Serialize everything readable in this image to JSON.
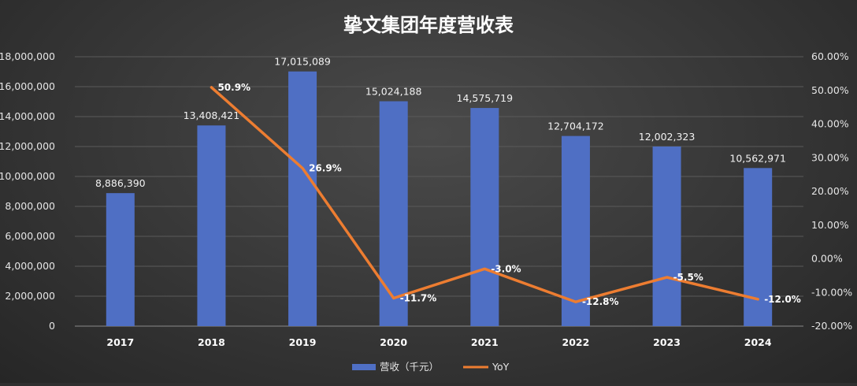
{
  "chart_data": {
    "type": "bar",
    "title": "挚文集团年度营收表",
    "categories": [
      "2017",
      "2018",
      "2019",
      "2020",
      "2021",
      "2022",
      "2023",
      "2024"
    ],
    "series": [
      {
        "name": "营收（千元）",
        "type": "bar",
        "axis": "left",
        "color": "#4f6fc4",
        "values": [
          8886390,
          13408421,
          17015089,
          15024188,
          14575719,
          12704172,
          12002323,
          10562971
        ],
        "labels": [
          "8,886,390",
          "13,408,421",
          "17,015,089",
          "15,024,188",
          "14,575,719",
          "12,704,172",
          "12,002,323",
          "10,562,971"
        ]
      },
      {
        "name": "YoY",
        "type": "line",
        "axis": "right",
        "color": "#ed7d31",
        "values": [
          null,
          50.9,
          26.9,
          -11.7,
          -3.0,
          -12.8,
          -5.5,
          -12.0
        ],
        "labels": [
          "",
          "50.9%",
          "26.9%",
          "-11.7%",
          "-3.0%",
          "-12.8%",
          "-5.5%",
          "-12.0%"
        ]
      }
    ],
    "y_left": {
      "min": 0,
      "max": 18000000,
      "ticks": [
        "0",
        "2,000,000",
        "4,000,000",
        "6,000,000",
        "8,000,000",
        "10,000,000",
        "12,000,000",
        "14,000,000",
        "16,000,000",
        "18,000,000"
      ]
    },
    "y_right": {
      "min": -20,
      "max": 60,
      "ticks": [
        "-20.00%",
        "-10.00%",
        "0.00%",
        "10.00%",
        "20.00%",
        "30.00%",
        "40.00%",
        "50.00%",
        "60.00%"
      ]
    },
    "grid": true,
    "legend": "bottom"
  }
}
